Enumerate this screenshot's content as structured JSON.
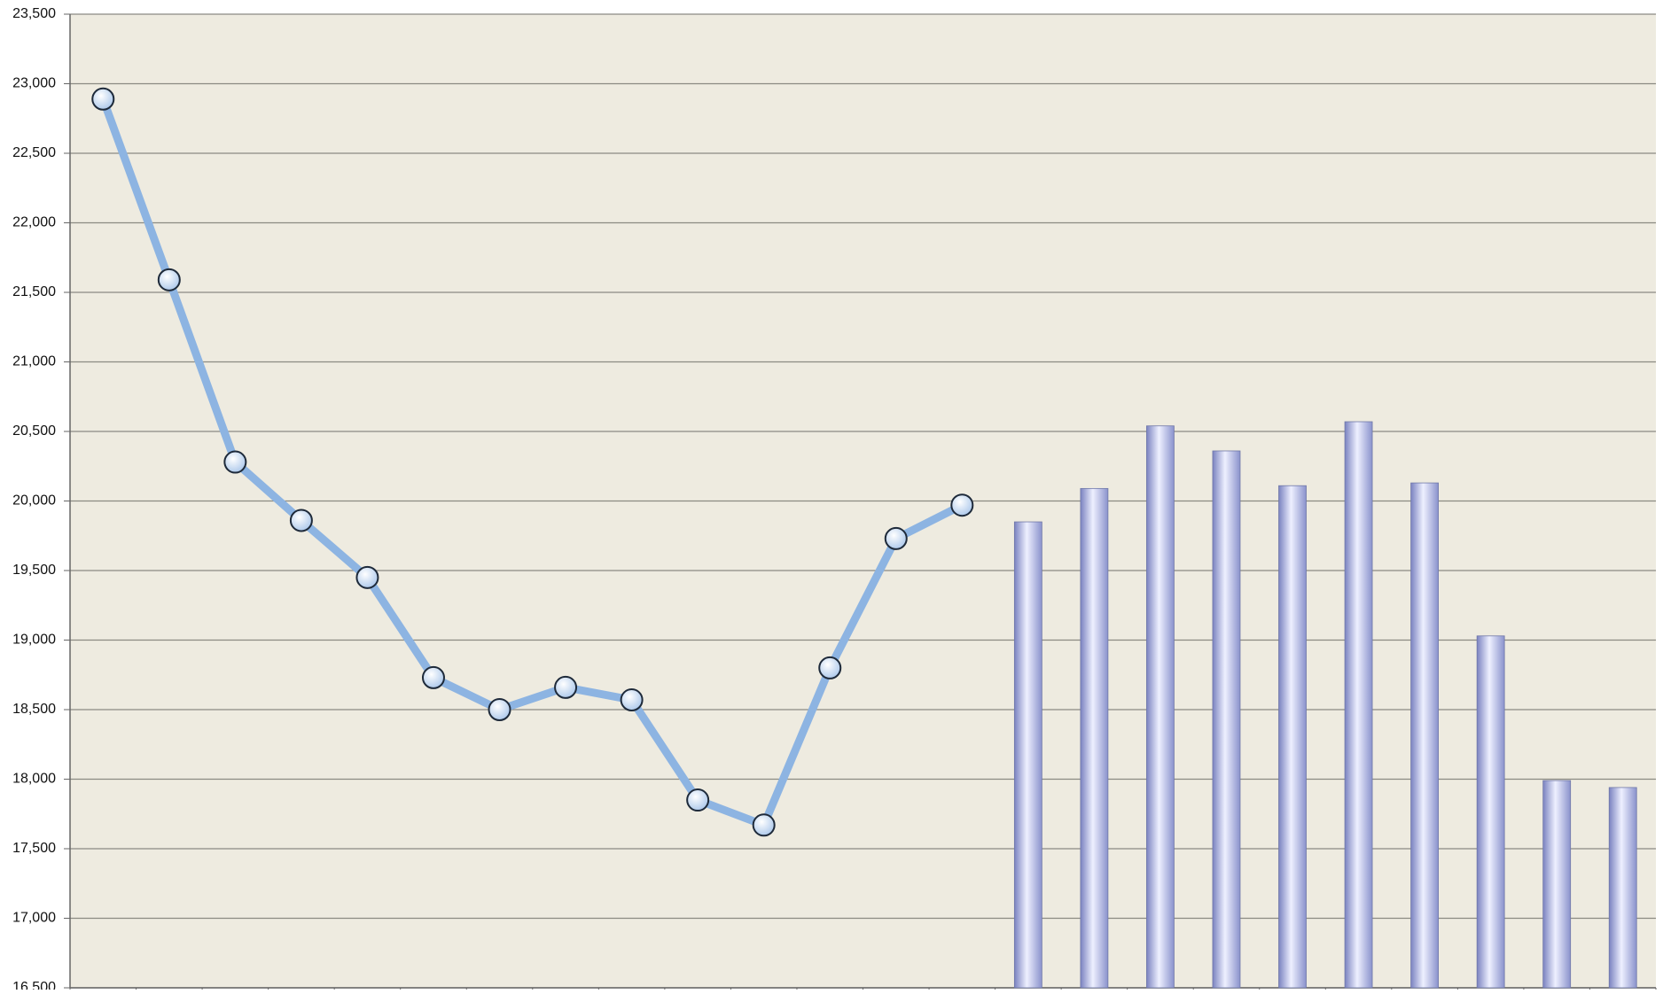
{
  "chart_data": {
    "type": "combo",
    "categories": [
      null,
      null,
      null,
      null,
      null,
      null,
      null,
      null,
      null,
      null,
      null,
      null,
      null,
      null,
      null,
      null,
      null,
      null,
      null,
      null,
      null,
      null,
      null,
      null
    ],
    "series": [
      {
        "type": "line",
        "color": "#8db4e2",
        "values": [
          22890,
          21590,
          20280,
          19860,
          19450,
          18730,
          18500,
          18660,
          18570,
          17850,
          17670,
          18800,
          19730,
          19970,
          null,
          null,
          null,
          null,
          null,
          null,
          null,
          null,
          null,
          null
        ]
      },
      {
        "type": "bar",
        "color": "#b8c0ec",
        "values": [
          null,
          null,
          null,
          null,
          null,
          null,
          null,
          null,
          null,
          null,
          null,
          null,
          null,
          null,
          19850,
          20090,
          20540,
          20360,
          20110,
          20570,
          20130,
          19030,
          17990,
          17940
        ]
      }
    ],
    "ylim": [
      16500,
      23500
    ],
    "yticks": [
      {
        "value": 16500,
        "label": "16,500"
      },
      {
        "value": 17000,
        "label": "17,000"
      },
      {
        "value": 17500,
        "label": "17,500"
      },
      {
        "value": 18000,
        "label": "18,000"
      },
      {
        "value": 18500,
        "label": "18,500"
      },
      {
        "value": 19000,
        "label": "19,000"
      },
      {
        "value": 19500,
        "label": "19,500"
      },
      {
        "value": 20000,
        "label": "20,000"
      },
      {
        "value": 20500,
        "label": "20,500"
      },
      {
        "value": 21000,
        "label": "21,000"
      },
      {
        "value": 21500,
        "label": "21,500"
      },
      {
        "value": 22000,
        "label": "22,000"
      },
      {
        "value": 22500,
        "label": "22,500"
      },
      {
        "value": 23000,
        "label": "23,000"
      },
      {
        "value": 23500,
        "label": "23,500"
      }
    ],
    "grid": true
  }
}
